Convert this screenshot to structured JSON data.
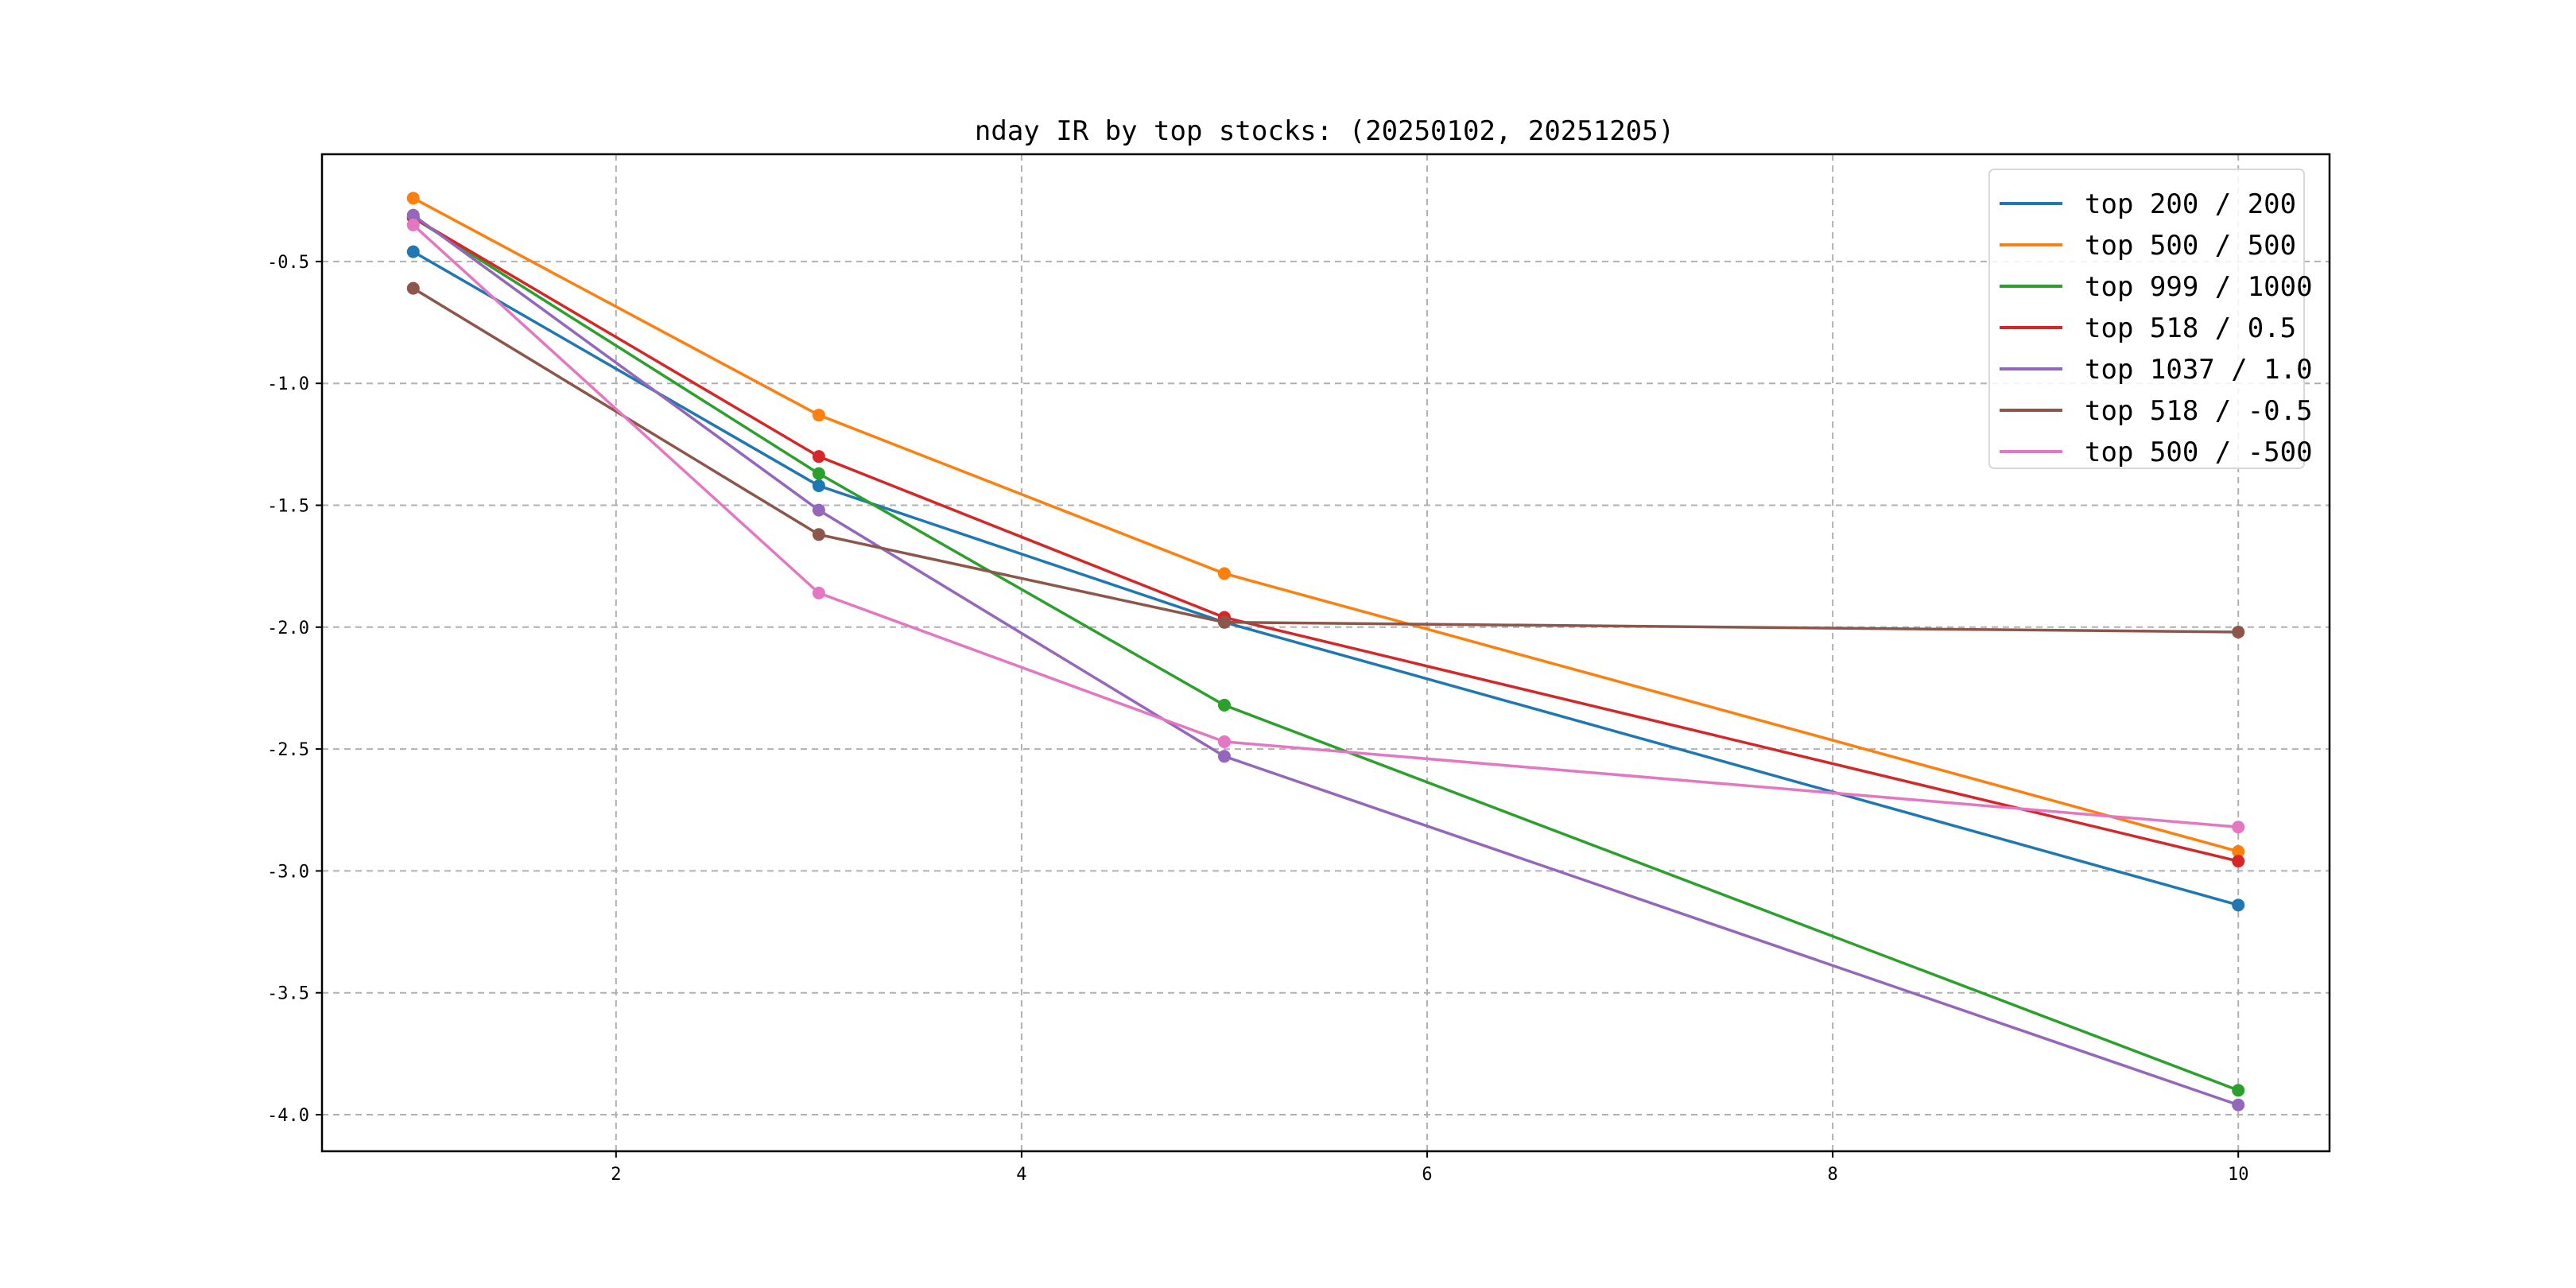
{
  "chart_data": {
    "type": "line",
    "title": "nday IR by top stocks: (20250102, 20251205)",
    "xlabel": "",
    "ylabel": "",
    "x": [
      1,
      3,
      5,
      10
    ],
    "xlim": [
      0.55,
      10.45
    ],
    "ylim": [
      -4.15,
      -0.06
    ],
    "xticks": [
      2,
      4,
      6,
      8,
      10
    ],
    "yticks": [
      -0.5,
      -1.0,
      -1.5,
      -2.0,
      -2.5,
      -3.0,
      -3.5,
      -4.0
    ],
    "xtick_labels": [
      "2",
      "4",
      "6",
      "8",
      "10"
    ],
    "ytick_labels": [
      "-0.5",
      "-1.0",
      "-1.5",
      "-2.0",
      "-2.5",
      "-3.0",
      "-3.5",
      "-4.0"
    ],
    "grid": true,
    "legend_position": "top-right",
    "series": [
      {
        "name": "top 200 / 200",
        "color": "#1f77b4",
        "values": [
          -0.46,
          -1.42,
          -1.98,
          -3.14
        ]
      },
      {
        "name": "top 500 / 500",
        "color": "#ff7f0e",
        "values": [
          -0.24,
          -1.13,
          -1.78,
          -2.92
        ]
      },
      {
        "name": "top 999 / 1000",
        "color": "#2ca02c",
        "values": [
          -0.32,
          -1.37,
          -2.32,
          -3.9
        ]
      },
      {
        "name": "top 518 / 0.5",
        "color": "#d62728",
        "values": [
          -0.32,
          -1.3,
          -1.96,
          -2.96
        ]
      },
      {
        "name": "top 1037 / 1.0",
        "color": "#9467bd",
        "values": [
          -0.31,
          -1.52,
          -2.53,
          -3.96
        ]
      },
      {
        "name": "top 518 / -0.5",
        "color": "#8c564b",
        "values": [
          -0.61,
          -1.62,
          -1.98,
          -2.02
        ]
      },
      {
        "name": "top 500 / -500",
        "color": "#e377c2",
        "values": [
          -0.35,
          -1.86,
          -2.47,
          -2.82
        ]
      }
    ]
  }
}
